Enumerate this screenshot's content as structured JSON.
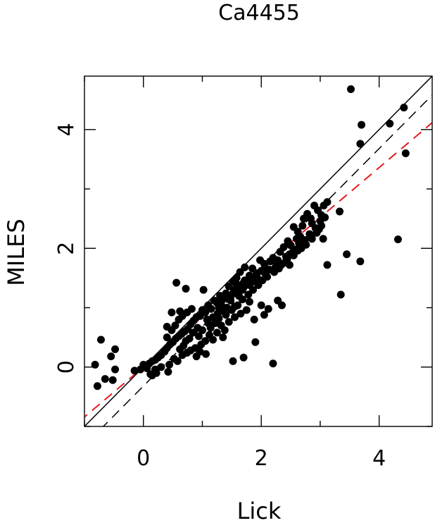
{
  "chart_data": {
    "type": "scatter",
    "title": "Ca4455",
    "xlabel": "Lick",
    "ylabel": "MILES",
    "xlim": [
      -1,
      4.9
    ],
    "ylim": [
      -1,
      4.9
    ],
    "xticks": [
      0,
      2,
      4
    ],
    "yticks": [
      0,
      2,
      4
    ],
    "grid": false,
    "lines": [
      {
        "style": "solid",
        "color": "#000000",
        "intercept": 0.0,
        "slope": 1.0
      },
      {
        "style": "dashed",
        "color": "#000000",
        "intercept": -0.32,
        "slope": 1.0
      },
      {
        "style": "dashed",
        "color": "#e41a1c",
        "intercept": 0.0,
        "slope": 0.84
      }
    ],
    "points": [
      [
        3.52,
        4.68
      ],
      [
        4.42,
        4.37
      ],
      [
        3.7,
        4.08
      ],
      [
        4.18,
        4.1
      ],
      [
        3.68,
        3.76
      ],
      [
        4.45,
        3.6
      ],
      [
        4.32,
        2.15
      ],
      [
        3.33,
        2.62
      ],
      [
        3.12,
        2.78
      ],
      [
        3.06,
        2.72
      ],
      [
        2.96,
        2.64
      ],
      [
        2.9,
        2.72
      ],
      [
        3.02,
        2.56
      ],
      [
        2.84,
        2.5
      ],
      [
        2.78,
        2.58
      ],
      [
        2.86,
        2.42
      ],
      [
        2.72,
        2.5
      ],
      [
        2.7,
        2.38
      ],
      [
        2.98,
        2.32
      ],
      [
        2.62,
        2.28
      ],
      [
        2.55,
        2.36
      ],
      [
        2.66,
        2.2
      ],
      [
        2.45,
        2.12
      ],
      [
        2.6,
        2.16
      ],
      [
        2.38,
        2.02
      ],
      [
        2.5,
        2.05
      ],
      [
        2.32,
        1.94
      ],
      [
        2.42,
        1.86
      ],
      [
        2.28,
        1.8
      ],
      [
        2.2,
        1.84
      ],
      [
        2.15,
        1.78
      ],
      [
        2.26,
        1.72
      ],
      [
        2.05,
        1.74
      ],
      [
        1.98,
        1.8
      ],
      [
        2.1,
        1.65
      ],
      [
        2.0,
        1.62
      ],
      [
        1.92,
        1.58
      ],
      [
        1.85,
        1.66
      ],
      [
        1.8,
        1.54
      ],
      [
        1.72,
        1.68
      ],
      [
        1.64,
        1.6
      ],
      [
        1.58,
        1.5
      ],
      [
        1.52,
        1.44
      ],
      [
        1.7,
        1.42
      ],
      [
        1.62,
        1.34
      ],
      [
        1.54,
        1.3
      ],
      [
        1.45,
        1.36
      ],
      [
        1.4,
        1.24
      ],
      [
        1.48,
        1.18
      ],
      [
        1.35,
        1.14
      ],
      [
        1.3,
        1.2
      ],
      [
        1.25,
        1.08
      ],
      [
        1.2,
        1.12
      ],
      [
        1.28,
        1.0
      ],
      [
        1.15,
        0.98
      ],
      [
        1.1,
        1.04
      ],
      [
        1.05,
        0.92
      ],
      [
        1.0,
        0.96
      ],
      [
        0.96,
        0.86
      ],
      [
        1.08,
        0.8
      ],
      [
        0.9,
        0.84
      ],
      [
        0.85,
        0.78
      ],
      [
        0.8,
        0.72
      ],
      [
        0.92,
        0.66
      ],
      [
        0.75,
        0.64
      ],
      [
        0.7,
        0.6
      ],
      [
        0.65,
        0.56
      ],
      [
        0.6,
        0.52
      ],
      [
        0.55,
        0.48
      ],
      [
        0.72,
        0.44
      ],
      [
        0.5,
        0.42
      ],
      [
        0.45,
        0.38
      ],
      [
        0.4,
        0.32
      ],
      [
        0.62,
        0.3
      ],
      [
        0.35,
        0.26
      ],
      [
        0.3,
        0.2
      ],
      [
        0.25,
        0.16
      ],
      [
        0.2,
        0.12
      ],
      [
        0.15,
        0.1
      ],
      [
        0.1,
        0.06
      ],
      [
        0.05,
        0.02
      ],
      [
        0.0,
        0.04
      ],
      [
        -0.05,
        -0.04
      ],
      [
        -0.15,
        -0.06
      ],
      [
        0.2,
        -0.04
      ],
      [
        0.15,
        -0.14
      ],
      [
        0.42,
        -0.08
      ],
      [
        0.62,
        0.94
      ],
      [
        0.56,
        1.42
      ],
      [
        0.72,
        1.32
      ],
      [
        1.02,
        1.3
      ],
      [
        0.4,
        0.68
      ],
      [
        0.48,
        0.92
      ],
      [
        0.36,
        0.26
      ],
      [
        -0.72,
        0.46
      ],
      [
        -0.48,
        0.3
      ],
      [
        -0.55,
        0.18
      ],
      [
        -0.65,
        -0.2
      ],
      [
        -0.48,
        -0.04
      ],
      [
        -0.78,
        -0.32
      ],
      [
        -0.52,
        -0.22
      ],
      [
        -0.82,
        0.04
      ],
      [
        1.9,
        0.42
      ],
      [
        1.52,
        0.1
      ],
      [
        1.7,
        0.16
      ],
      [
        2.2,
        0.06
      ],
      [
        2.28,
        1.12
      ],
      [
        2.12,
        0.98
      ],
      [
        2.35,
        1.04
      ],
      [
        2.0,
        1.04
      ],
      [
        1.88,
        0.8
      ],
      [
        2.05,
        0.88
      ],
      [
        1.8,
        1.1
      ],
      [
        1.75,
        0.96
      ],
      [
        1.65,
        0.9
      ],
      [
        1.55,
        0.84
      ],
      [
        1.45,
        0.76
      ],
      [
        1.38,
        0.62
      ],
      [
        1.32,
        0.7
      ],
      [
        1.25,
        0.58
      ],
      [
        1.35,
        0.5
      ],
      [
        1.18,
        0.46
      ],
      [
        1.12,
        0.54
      ],
      [
        1.05,
        0.44
      ],
      [
        0.98,
        0.38
      ],
      [
        0.88,
        0.32
      ],
      [
        0.8,
        0.28
      ],
      [
        0.74,
        0.24
      ],
      [
        0.68,
        0.36
      ],
      [
        0.78,
        0.48
      ],
      [
        0.84,
        0.58
      ],
      [
        0.94,
        0.52
      ],
      [
        1.14,
        0.66
      ],
      [
        1.22,
        0.74
      ],
      [
        1.28,
        0.82
      ],
      [
        1.4,
        0.88
      ],
      [
        1.5,
        0.96
      ],
      [
        1.6,
        1.04
      ],
      [
        1.68,
        1.14
      ],
      [
        1.78,
        1.22
      ],
      [
        1.86,
        1.3
      ],
      [
        1.95,
        1.38
      ],
      [
        2.02,
        1.46
      ],
      [
        2.1,
        1.52
      ],
      [
        2.22,
        1.6
      ],
      [
        2.3,
        1.66
      ],
      [
        2.4,
        1.76
      ],
      [
        2.48,
        1.9
      ],
      [
        2.56,
        1.98
      ],
      [
        2.64,
        2.08
      ],
      [
        2.74,
        2.14
      ],
      [
        2.82,
        2.24
      ],
      [
        2.92,
        2.34
      ],
      [
        3.0,
        2.46
      ],
      [
        3.08,
        2.52
      ],
      [
        3.12,
        1.72
      ],
      [
        3.05,
        2.16
      ],
      [
        3.45,
        1.9
      ],
      [
        3.68,
        1.78
      ],
      [
        3.35,
        1.22
      ],
      [
        2.62,
        1.96
      ],
      [
        2.55,
        1.88
      ],
      [
        2.48,
        1.72
      ],
      [
        1.62,
        1.2
      ],
      [
        1.68,
        1.3
      ],
      [
        1.55,
        1.02
      ],
      [
        1.48,
        1.12
      ],
      [
        1.58,
        1.4
      ],
      [
        1.42,
        1.0
      ],
      [
        1.36,
        0.94
      ],
      [
        1.72,
        1.46
      ],
      [
        1.82,
        1.5
      ],
      [
        1.92,
        1.56
      ],
      [
        0.58,
        0.1
      ],
      [
        0.66,
        0.2
      ],
      [
        0.52,
        0.14
      ],
      [
        0.44,
        0.04
      ],
      [
        0.3,
        0.0
      ],
      [
        0.22,
        -0.1
      ],
      [
        0.12,
        -0.12
      ],
      [
        0.06,
        -0.02
      ],
      [
        0.9,
        0.18
      ],
      [
        0.96,
        0.26
      ],
      [
        1.06,
        0.22
      ],
      [
        0.4,
        0.5
      ],
      [
        0.48,
        0.62
      ],
      [
        0.54,
        0.7
      ],
      [
        0.6,
        0.8
      ],
      [
        0.66,
        0.86
      ],
      [
        0.74,
        0.92
      ],
      [
        0.82,
        0.98
      ],
      [
        1.0,
        0.62
      ],
      [
        1.1,
        0.74
      ],
      [
        1.18,
        0.84
      ],
      [
        1.26,
        0.9
      ],
      [
        1.34,
        1.02
      ],
      [
        1.44,
        1.16
      ],
      [
        1.52,
        1.24
      ],
      [
        1.6,
        1.3
      ],
      [
        1.7,
        1.34
      ],
      [
        1.8,
        1.38
      ],
      [
        1.88,
        1.44
      ],
      [
        1.95,
        1.48
      ],
      [
        2.06,
        1.58
      ],
      [
        2.14,
        1.64
      ],
      [
        2.24,
        1.68
      ],
      [
        2.34,
        1.72
      ],
      [
        2.44,
        1.82
      ],
      [
        2.52,
        1.92
      ],
      [
        2.68,
        2.0
      ],
      [
        2.76,
        2.06
      ],
      [
        2.86,
        2.16
      ],
      [
        2.94,
        2.26
      ],
      [
        3.02,
        2.38
      ]
    ]
  }
}
